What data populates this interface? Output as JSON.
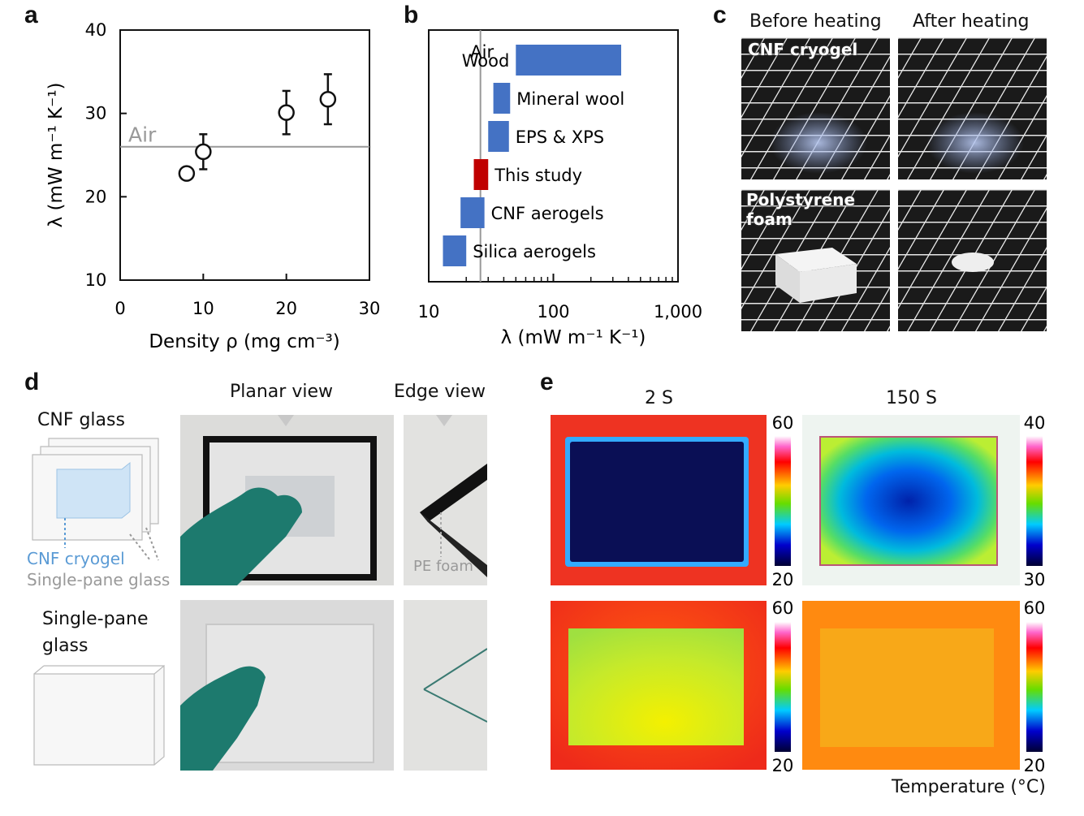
{
  "panels": {
    "a": "a",
    "b": "b",
    "c": "c",
    "d": "d",
    "e": "e"
  },
  "chart_data": [
    {
      "type": "scatter",
      "panel": "a",
      "xlabel": "Density ρ (mg cm⁻³)",
      "ylabel": "λ (mW m⁻¹ K⁻¹)",
      "xlim": [
        0,
        30
      ],
      "ylim": [
        10,
        40
      ],
      "x_ticks": [
        "0",
        "10",
        "20",
        "30"
      ],
      "y_ticks": [
        "10",
        "20",
        "30",
        "40"
      ],
      "points": [
        {
          "x": 8,
          "y": 22.8,
          "err": 0
        },
        {
          "x": 10,
          "y": 25.4,
          "err": 2.1
        },
        {
          "x": 20,
          "y": 30.1,
          "err": 2.6
        },
        {
          "x": 25,
          "y": 31.7,
          "err": 3.0
        }
      ],
      "reference_line": {
        "label": "Air",
        "y": 26
      }
    },
    {
      "type": "bar",
      "panel": "b",
      "orientation": "horizontal-range",
      "xlabel": "λ (mW m⁻¹ K⁻¹)",
      "x_scale": "log",
      "xlim": [
        10,
        1000
      ],
      "x_ticks": [
        "10",
        "100",
        "1,000"
      ],
      "reference_line": {
        "label": "Air",
        "x": 26
      },
      "categories": [
        "Wood",
        "Mineral wool",
        "EPS & XPS",
        "This study",
        "CNF aerogels",
        "Silica aerogels"
      ],
      "ranges": [
        [
          50,
          350
        ],
        [
          33,
          45
        ],
        [
          30,
          44
        ],
        [
          23,
          30
        ],
        [
          18,
          28
        ],
        [
          13,
          20
        ]
      ],
      "colors": [
        "#4472c4",
        "#4472c4",
        "#4472c4",
        "#c00000",
        "#4472c4",
        "#4472c4"
      ]
    },
    {
      "type": "heatmap",
      "panel": "e",
      "columns": [
        "2 S",
        "150 S"
      ],
      "scales": [
        {
          "max": "60",
          "min": "20"
        },
        {
          "max": "40",
          "min": "30"
        },
        {
          "max": "60",
          "min": "20"
        },
        {
          "max": "60",
          "min": "20"
        }
      ],
      "unit_label": "Temperature (°C)"
    }
  ],
  "c": {
    "before": "Before heating",
    "after": "After heating",
    "cnf_label": "CNF cryogel",
    "ps_label_1": "Polystyrene",
    "ps_label_2": "foam"
  },
  "d": {
    "planar": "Planar view",
    "edge": "Edge view",
    "cnf_glass": "CNF glass",
    "cnf_cryogel": "CNF cryogel",
    "single_pane": "Single-pane glass",
    "single_pane_1": "Single-pane",
    "single_pane_2": "glass",
    "pe_foam": "PE foam"
  }
}
